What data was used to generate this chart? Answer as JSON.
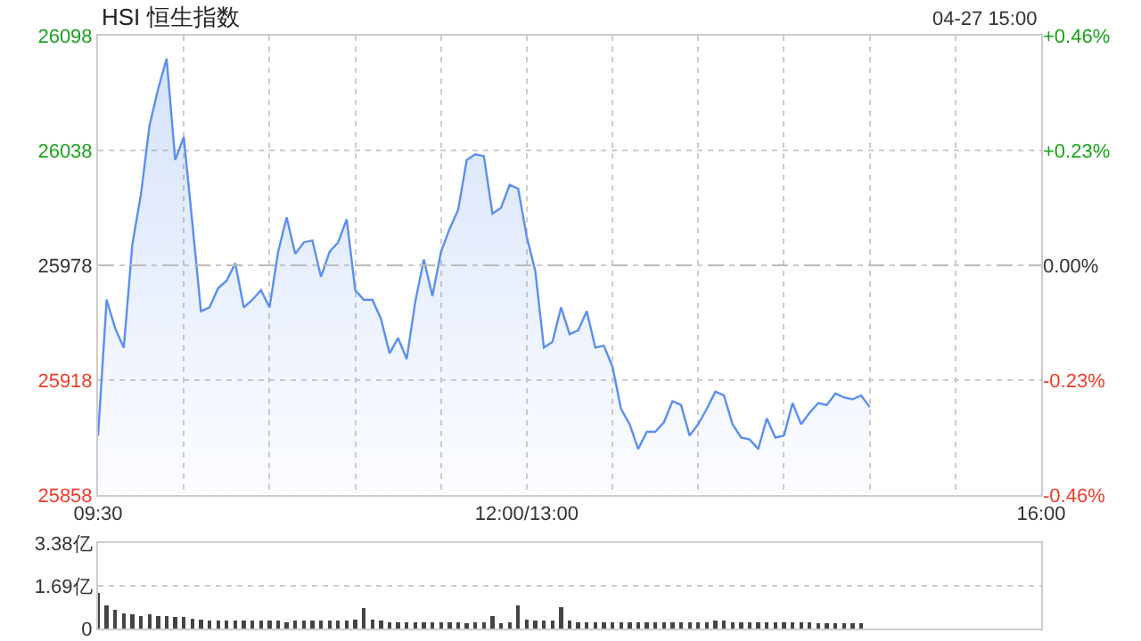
{
  "chart_data": [
    {
      "type": "area",
      "title": "HSI 恒生指数",
      "annotations": [
        "04-27 15:00"
      ],
      "categories": [
        "09:30",
        null,
        null,
        null,
        null,
        null,
        null,
        null,
        null,
        null,
        null,
        null,
        null,
        null,
        null,
        null,
        null,
        null,
        null,
        null,
        null,
        null,
        null,
        null,
        null,
        null,
        null,
        null,
        null,
        null,
        null,
        null,
        null,
        null,
        null,
        null,
        null,
        null,
        null,
        null,
        null,
        null,
        null,
        null,
        null,
        null,
        null,
        null,
        null,
        null,
        "12:00/13:00",
        null,
        null,
        null,
        null,
        null,
        null,
        null,
        null,
        null,
        null,
        null,
        null,
        null,
        null,
        null,
        null,
        null,
        null,
        null,
        null,
        null,
        null,
        null,
        null,
        null,
        null,
        null,
        null,
        null,
        null,
        null,
        null,
        null,
        null,
        null,
        null,
        null,
        null,
        null,
        null,
        null,
        null,
        null,
        null,
        null,
        null,
        null,
        null,
        null,
        null,
        null,
        null,
        null,
        null,
        null,
        null,
        null,
        null,
        null,
        "16:00"
      ],
      "ylim": [
        25858,
        26098
      ],
      "yticks": [
        25858,
        25918,
        25978,
        26038,
        26098
      ],
      "y2lim": [
        -0.46,
        0.46
      ],
      "y2ticks": [
        {
          "value": -0.46,
          "label": "-0.46%"
        },
        {
          "value": -0.23,
          "label": "-0.23%"
        },
        {
          "value": 0,
          "label": "0.00%"
        },
        {
          "value": 0.23,
          "label": "+0.23%"
        },
        {
          "value": 0.46,
          "label": "+0.46%"
        }
      ],
      "ref_lines": [
        {
          "axis": "y",
          "value": 25978,
          "line_style": "dashed",
          "color": "#bbbbbb"
        }
      ],
      "grid": true,
      "legend": false,
      "marker": "none",
      "series": [
        {
          "color": "#5b8ff0",
          "values": [
            25889,
            25960,
            25945,
            25935,
            25989,
            26015,
            26051,
            26070,
            26086,
            26033,
            26045,
            26000,
            25954,
            25956,
            25966,
            25970,
            25979,
            25956,
            25960,
            25965,
            25956,
            25985,
            26003,
            25984,
            25990,
            25991,
            25972,
            25985,
            25990,
            26002,
            25965,
            25960,
            25960,
            25950,
            25932,
            25940,
            25929,
            25959,
            25981,
            25962,
            25985,
            25997,
            26007,
            26033,
            26036,
            26035,
            26005,
            26008,
            26020,
            26018,
            25993,
            25975,
            25935,
            25938,
            25956,
            25942,
            25944,
            25954,
            25935,
            25936,
            25925,
            25903,
            25895,
            25882,
            25891,
            25891,
            25896,
            25907,
            25905,
            25889,
            25895,
            25903,
            25912,
            25910,
            25895,
            25888,
            25887,
            25882,
            25898,
            25888,
            25889,
            25906,
            25895,
            25901,
            25906,
            25905,
            25911,
            25909,
            25908,
            25910,
            25904,
            null,
            null,
            null,
            null,
            null,
            null,
            null,
            null,
            null,
            null,
            null,
            null,
            null,
            null,
            null,
            null,
            null,
            null,
            null,
            null
          ]
        }
      ]
    },
    {
      "type": "bar",
      "categories": [
        null,
        null,
        null,
        null,
        null,
        null,
        null,
        null,
        null,
        null,
        null,
        null,
        null,
        null,
        null,
        null,
        null,
        null,
        null,
        null,
        null,
        null,
        null,
        null,
        null,
        null,
        null,
        null,
        null,
        null,
        null,
        null,
        null,
        null,
        null,
        null,
        null,
        null,
        null,
        null,
        null,
        null,
        null,
        null,
        null,
        null,
        null,
        null,
        null,
        null,
        null,
        null,
        null,
        null,
        null,
        null,
        null,
        null,
        null,
        null,
        null,
        null,
        null,
        null,
        null,
        null,
        null,
        null,
        null,
        null,
        null,
        null,
        null,
        null,
        null,
        null,
        null,
        null,
        null,
        null,
        null,
        null,
        null,
        null,
        null,
        null,
        null,
        null,
        null,
        null,
        null,
        null,
        null,
        null,
        null,
        null,
        null,
        null,
        null,
        null,
        null,
        null,
        null,
        null,
        null,
        null,
        null,
        null,
        null,
        null,
        null
      ],
      "ylim": [
        0,
        3.38
      ],
      "yticks": [
        0,
        {
          "value": 1.69,
          "label": "1.69亿"
        },
        {
          "value": 3.38,
          "label": "3.38亿"
        }
      ],
      "grid": "y",
      "legend": false,
      "tick_labels": "y",
      "series": [
        {
          "color": "#444444",
          "values": [
            1.4,
            0.9,
            0.75,
            0.6,
            0.55,
            0.5,
            0.55,
            0.5,
            0.5,
            0.45,
            0.45,
            0.4,
            0.35,
            0.3,
            0.3,
            0.3,
            0.3,
            0.3,
            0.3,
            0.3,
            0.3,
            0.3,
            0.25,
            0.3,
            0.3,
            0.3,
            0.3,
            0.3,
            0.3,
            0.3,
            0.35,
            0.8,
            0.35,
            0.3,
            0.25,
            0.25,
            0.25,
            0.25,
            0.25,
            0.25,
            0.25,
            0.25,
            0.25,
            0.2,
            0.25,
            0.25,
            0.5,
            0.2,
            0.25,
            0.9,
            0.35,
            0.3,
            0.3,
            0.3,
            0.85,
            0.3,
            0.25,
            0.25,
            0.25,
            0.25,
            0.25,
            0.25,
            0.25,
            0.25,
            0.25,
            0.25,
            0.25,
            0.25,
            0.25,
            0.25,
            0.25,
            0.25,
            0.3,
            0.3,
            0.25,
            0.25,
            0.25,
            0.25,
            0.25,
            0.25,
            0.25,
            0.25,
            0.25,
            0.25,
            0.2,
            0.2,
            0.2,
            0.2,
            0.2,
            0.2,
            null,
            null,
            null,
            null,
            null,
            null,
            null,
            null,
            null,
            null,
            null,
            null,
            null,
            null,
            null,
            null,
            null,
            null,
            null,
            null,
            null
          ]
        }
      ]
    }
  ]
}
